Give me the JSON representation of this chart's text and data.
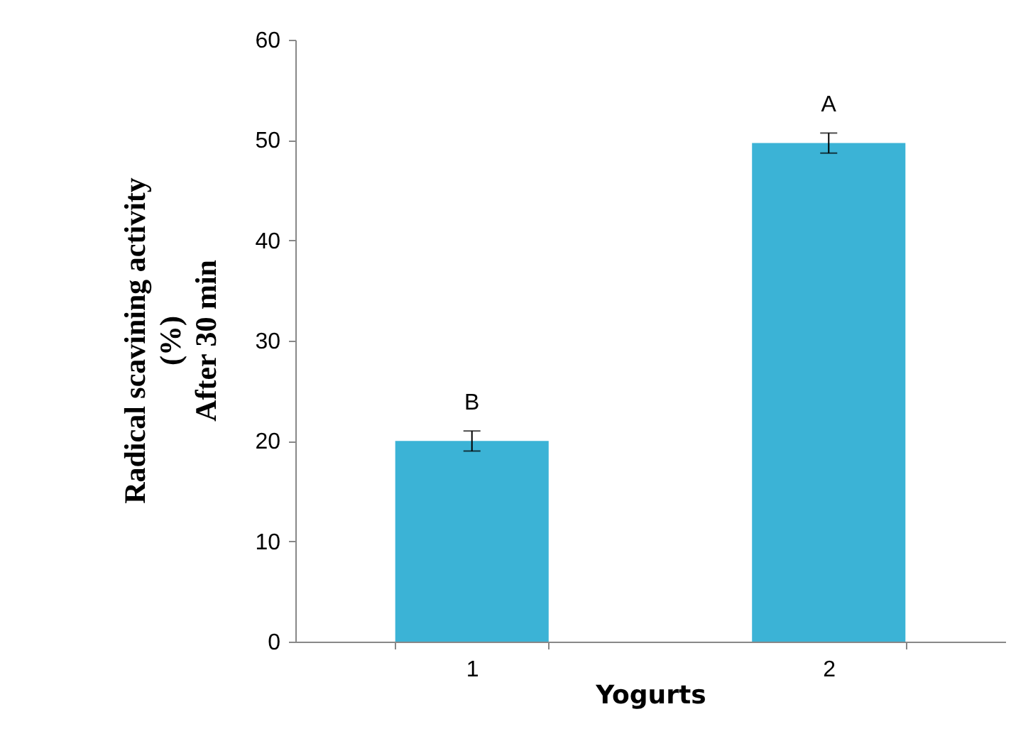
{
  "chart_data": {
    "type": "bar",
    "xlabel": "Yogurts",
    "ylabel": "Radical scavining activity\n(%)\nAfter 30 min",
    "categories": [
      "1",
      "2"
    ],
    "values": [
      20,
      49.7
    ],
    "errors": [
      1,
      1
    ],
    "color": "#3bb3d6",
    "ylim": [
      0,
      60
    ],
    "yticks": [
      0,
      10,
      20,
      30,
      40,
      50,
      60
    ],
    "annotations": [
      "B",
      "A"
    ],
    "grid": false
  }
}
